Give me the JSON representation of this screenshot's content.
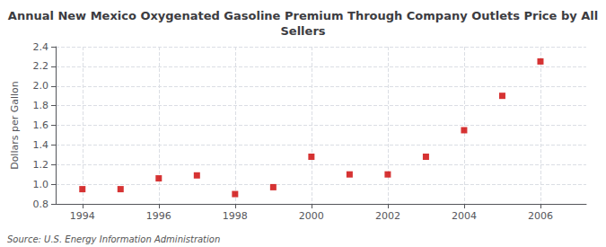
{
  "chart_data": {
    "type": "scatter",
    "title": "Annual New Mexico Oxygenated Gasoline Premium Through Company Outlets Price by All\nSellers",
    "y_label": "Dollars per Gallon",
    "annotation": "Source: U.S. Energy Information Administration",
    "x": [
      1994,
      1995,
      1996,
      1997,
      1998,
      1999,
      2000,
      2001,
      2002,
      2003,
      2004,
      2005,
      2006
    ],
    "values": [
      0.95,
      0.95,
      1.06,
      1.09,
      0.9,
      0.97,
      1.28,
      1.1,
      1.1,
      1.28,
      1.55,
      1.9,
      2.25
    ],
    "color": "#cc0000",
    "marker": "square",
    "xlim": [
      1993.3,
      2007.2
    ],
    "xticks": [
      1994,
      1996,
      1998,
      2000,
      2002,
      2004,
      2006
    ],
    "ylim": [
      0.8,
      2.4
    ],
    "yticks": [
      0.8,
      {
        "value": 1,
        "label": "1.0"
      },
      1.2,
      1.4,
      1.6,
      1.8,
      {
        "value": 2,
        "label": "2.0"
      },
      2.2,
      2.4
    ],
    "grid": true
  }
}
